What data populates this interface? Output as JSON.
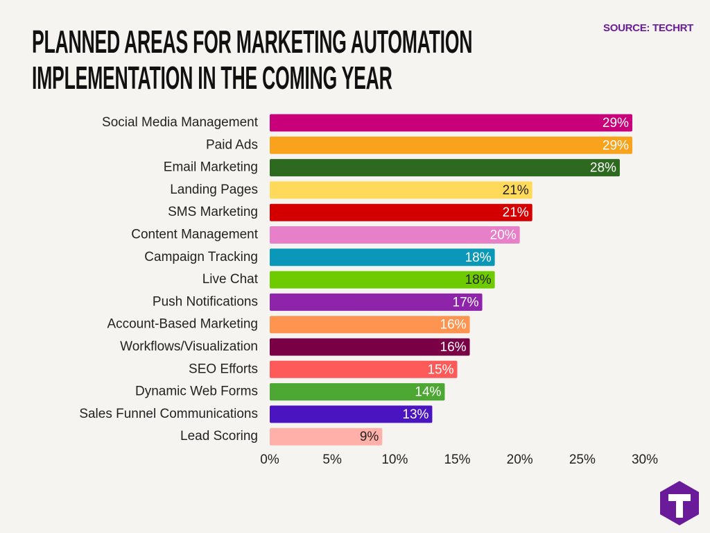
{
  "chart_data": {
    "type": "hbar",
    "title": "PLANNED AREAS FOR MARKETING AUTOMATION IMPLEMENTATION IN THE COMING YEAR",
    "source": "SOURCE: TECHRT",
    "categories": [
      "Social Media Management",
      "Paid Ads",
      "Email Marketing",
      "Landing Pages",
      "SMS Marketing",
      "Content Management",
      "Campaign Tracking",
      "Live Chat",
      "Push Notifications",
      "Account-Based Marketing",
      "Workflows/Visualization",
      "SEO Efforts",
      "Dynamic Web Forms",
      "Sales Funnel Communications",
      "Lead Scoring"
    ],
    "values": [
      29,
      29,
      28,
      21,
      21,
      20,
      18,
      18,
      17,
      16,
      16,
      15,
      14,
      13,
      9
    ],
    "value_labels": [
      "29%",
      "29%",
      "28%",
      "21%",
      "21%",
      "20%",
      "18%",
      "18%",
      "17%",
      "16%",
      "16%",
      "15%",
      "14%",
      "13%",
      "9%"
    ],
    "colors": [
      "#c8007a",
      "#f9a21b",
      "#2d6a1f",
      "#ffd95a",
      "#d40000",
      "#e87fc9",
      "#0b97b7",
      "#6ecb00",
      "#8e24aa",
      "#ff9450",
      "#7a0045",
      "#ff5a5a",
      "#4ca832",
      "#4a14c0",
      "#ffb0a8"
    ],
    "label_colors": [
      "#ffffff",
      "#ffffff",
      "#ffffff",
      "#222222",
      "#ffffff",
      "#ffffff",
      "#ffffff",
      "#222222",
      "#ffffff",
      "#ffffff",
      "#ffffff",
      "#ffffff",
      "#ffffff",
      "#ffffff",
      "#222222"
    ],
    "xlim": [
      0,
      30
    ],
    "xticks": [
      {
        "value": 0,
        "label": "0%"
      },
      {
        "value": 5,
        "label": "5%"
      },
      {
        "value": 10,
        "label": "10%"
      },
      {
        "value": 15,
        "label": "15%"
      },
      {
        "value": 20,
        "label": "20%"
      },
      {
        "value": 25,
        "label": "25%"
      },
      {
        "value": 30,
        "label": "30%"
      }
    ],
    "grid": false
  }
}
